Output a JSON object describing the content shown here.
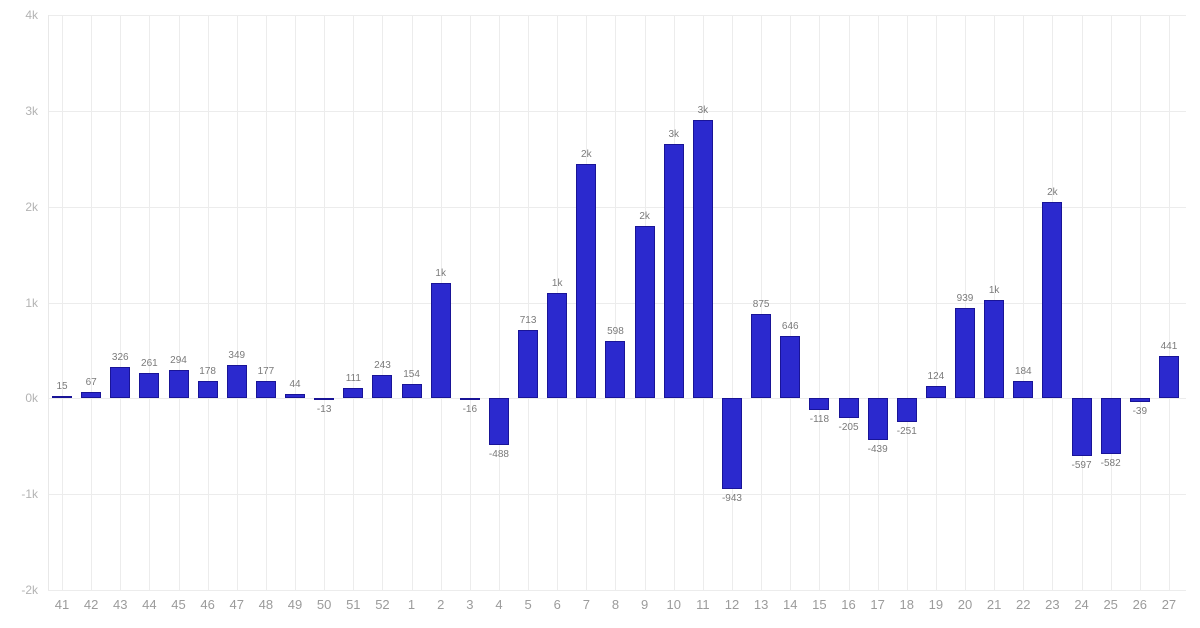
{
  "chart_data": {
    "type": "bar",
    "title": "",
    "xlabel": "",
    "ylabel": "",
    "grid": "on",
    "legend": "none",
    "ylim": [
      -2000,
      4000
    ],
    "categories": [
      "41",
      "42",
      "43",
      "44",
      "45",
      "46",
      "47",
      "48",
      "49",
      "50",
      "51",
      "52",
      "1",
      "2",
      "3",
      "4",
      "5",
      "6",
      "7",
      "8",
      "9",
      "10",
      "11",
      "12",
      "13",
      "14",
      "15",
      "16",
      "17",
      "18",
      "19",
      "20",
      "21",
      "22",
      "23",
      "24",
      "25",
      "26",
      "27"
    ],
    "values": [
      15,
      67,
      326,
      261,
      294,
      178,
      349,
      177,
      44,
      -13,
      111,
      243,
      154,
      1200,
      -16,
      -488,
      713,
      1100,
      2450,
      598,
      1800,
      2650,
      2900,
      -943,
      875,
      646,
      -118,
      -205,
      -439,
      -251,
      124,
      939,
      1030,
      184,
      2050,
      -597,
      -582,
      -39,
      441
    ],
    "bar_labels": [
      "15",
      "67",
      "326",
      "261",
      "294",
      "178",
      "349",
      "177",
      "44",
      "-13",
      "111",
      "243",
      "154",
      "1k",
      "-16",
      "-488",
      "713",
      "1k",
      "2k",
      "598",
      "2k",
      "3k",
      "3k",
      "-943",
      "875",
      "646",
      "-118",
      "-205",
      "-439",
      "-251",
      "124",
      "939",
      "1k",
      "184",
      "2k",
      "-597",
      "-582",
      "-39",
      "441"
    ],
    "y_ticks": [
      {
        "label": "4k",
        "value": 4000
      },
      {
        "label": "3k",
        "value": 3000
      },
      {
        "label": "2k",
        "value": 2000
      },
      {
        "label": "1k",
        "value": 1000
      },
      {
        "label": "0k",
        "value": 0
      },
      {
        "label": "-1k",
        "value": -1000
      },
      {
        "label": "-2k",
        "value": -2000
      }
    ],
    "colors": {
      "bar_fill": "#2b29ce",
      "bar_border": "#191497",
      "grid_line": "#ececec",
      "value_label": "#7a7a7a",
      "x_tick_label": "#9b9b9b",
      "y_tick_label": "#b3b3b3",
      "background": "#ffffff"
    }
  }
}
